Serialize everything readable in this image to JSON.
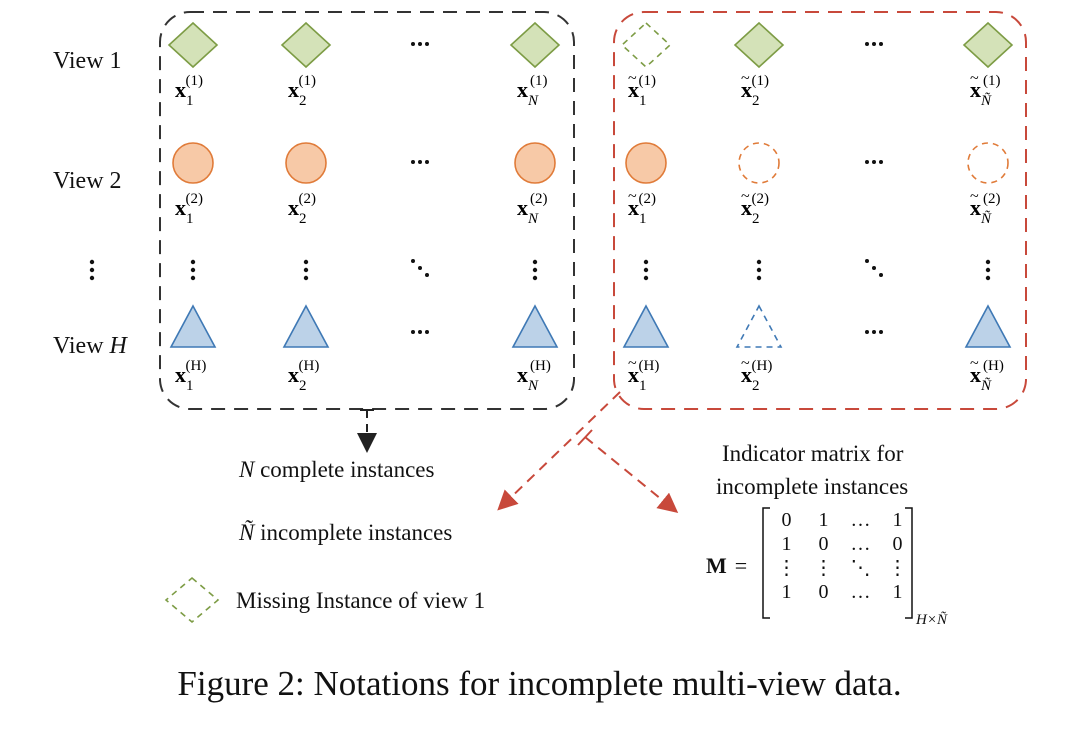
{
  "views": [
    {
      "label": "View 1",
      "shape": "diamond",
      "fill": "#d4e2b8",
      "stroke": "#7d9c45"
    },
    {
      "label": "View 2",
      "shape": "circle",
      "fill": "#f7c9a7",
      "stroke": "#e07b39"
    },
    {
      "label": "View H",
      "shape": "triangle",
      "fill": "#bcd2e8",
      "stroke": "#3f79b5"
    }
  ],
  "complete_group": {
    "border_color": "#333333",
    "rows": [
      [
        "x1(1)",
        "x2(1)",
        "xN(1)"
      ],
      [
        "x1(2)",
        "x2(2)",
        "xN(2)"
      ],
      [
        "x1(H)",
        "x2(H)",
        "xN(H)"
      ]
    ]
  },
  "incomplete_group": {
    "border_color": "#c8493b",
    "missing": [
      [
        true,
        false,
        false
      ],
      [
        false,
        true,
        true
      ],
      [
        false,
        true,
        false
      ]
    ]
  },
  "labels": {
    "complete_instances": "complete instances",
    "incomplete_instances": "incomplete instances",
    "missing_legend": "Missing Instance of view 1",
    "indicator_title_line1": "Indicator matrix for",
    "indicator_title_line2": "incomplete instances",
    "matrix_symbol": "M",
    "caption": "Figure 2: Notations for incomplete multi-view data."
  },
  "matrix": {
    "rows": [
      [
        "0",
        "1",
        "…",
        "1"
      ],
      [
        "1",
        "0",
        "…",
        "0"
      ],
      [
        "⋮",
        "⋮",
        "⋱",
        "⋮"
      ],
      [
        "1",
        "0",
        "…",
        "1"
      ]
    ],
    "size": "H×Ñ"
  },
  "colors": {
    "arrow_black": "#222222",
    "arrow_red": "#c8493b"
  }
}
